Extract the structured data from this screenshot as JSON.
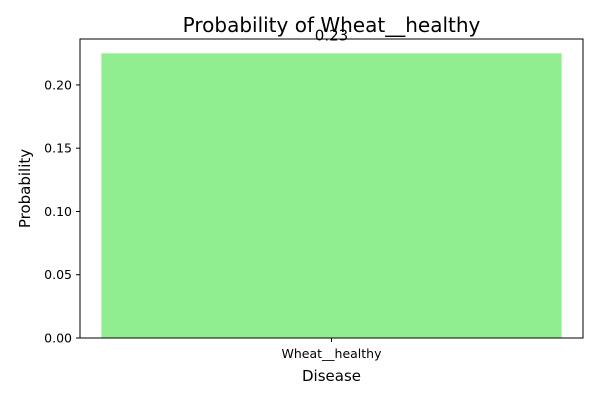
{
  "chart_data": {
    "type": "bar",
    "title": "Probability of Wheat__healthy",
    "xlabel": "Disease",
    "ylabel": "Probability",
    "categories": [
      "Wheat__healthy"
    ],
    "values": [
      0.225
    ],
    "data_labels": [
      "0.23"
    ],
    "ylim": [
      0,
      0.2363
    ],
    "yticks": [
      0.0,
      0.05,
      0.1,
      0.15,
      0.2
    ],
    "ytick_labels": [
      "0.00",
      "0.05",
      "0.10",
      "0.15",
      "0.20"
    ],
    "bar_color": "#90ee90",
    "grid": false,
    "legend": "none"
  }
}
